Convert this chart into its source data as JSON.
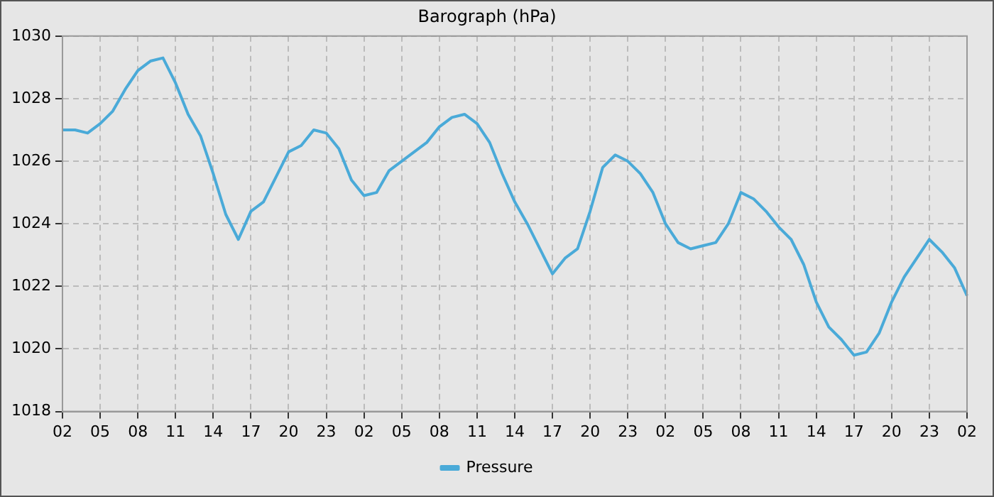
{
  "chart_data": {
    "type": "line",
    "title": "Barograph (hPa)",
    "categories": [
      "02",
      null,
      null,
      "05",
      null,
      null,
      "08",
      null,
      null,
      "11",
      null,
      null,
      "14",
      null,
      null,
      "17",
      null,
      null,
      "20",
      null,
      null,
      "23",
      null,
      null,
      "02",
      null,
      null,
      "05",
      null,
      null,
      "08",
      null,
      null,
      "11",
      null,
      null,
      "14",
      null,
      null,
      "17",
      null,
      null,
      "20",
      null,
      null,
      "23",
      null,
      null,
      "02",
      null,
      null,
      "05",
      null,
      null,
      "08",
      null,
      null,
      "11",
      null,
      null,
      "14",
      null,
      null,
      "17",
      null,
      null,
      "20",
      null,
      null,
      "23",
      null,
      null,
      "02"
    ],
    "series": [
      {
        "name": "Pressure",
        "color": "#4aaad8",
        "values": [
          1027.0,
          1027.0,
          1026.9,
          1027.2,
          1027.6,
          1028.3,
          1028.9,
          1029.2,
          1029.3,
          1028.5,
          1027.5,
          1026.8,
          1025.6,
          1024.3,
          1023.5,
          1024.4,
          1024.7,
          1025.5,
          1026.3,
          1026.5,
          1027.0,
          1026.9,
          1026.4,
          1025.4,
          1024.9,
          1025.0,
          1025.7,
          1026.0,
          1026.3,
          1026.6,
          1027.1,
          1027.4,
          1027.5,
          1027.2,
          1026.6,
          1025.6,
          1024.7,
          1024.0,
          1023.2,
          1022.4,
          1022.9,
          1023.2,
          1024.4,
          1025.8,
          1026.2,
          1026.0,
          1025.6,
          1025.0,
          1024.0,
          1023.4,
          1023.2,
          1023.3,
          1023.4,
          1024.0,
          1025.0,
          1024.8,
          1024.4,
          1023.9,
          1023.5,
          1022.7,
          1021.5,
          1020.7,
          1020.3,
          1019.8,
          1019.9,
          1020.5,
          1021.5,
          1022.3,
          1022.9,
          1023.5,
          1023.1,
          1022.6,
          1021.7
        ]
      }
    ],
    "ylim": [
      1018,
      1030
    ],
    "yticks": [
      1018,
      1020,
      1022,
      1024,
      1026,
      1028,
      1030
    ],
    "grid": true,
    "legend": "bottom",
    "marker": "none",
    "line_style": "solid"
  }
}
